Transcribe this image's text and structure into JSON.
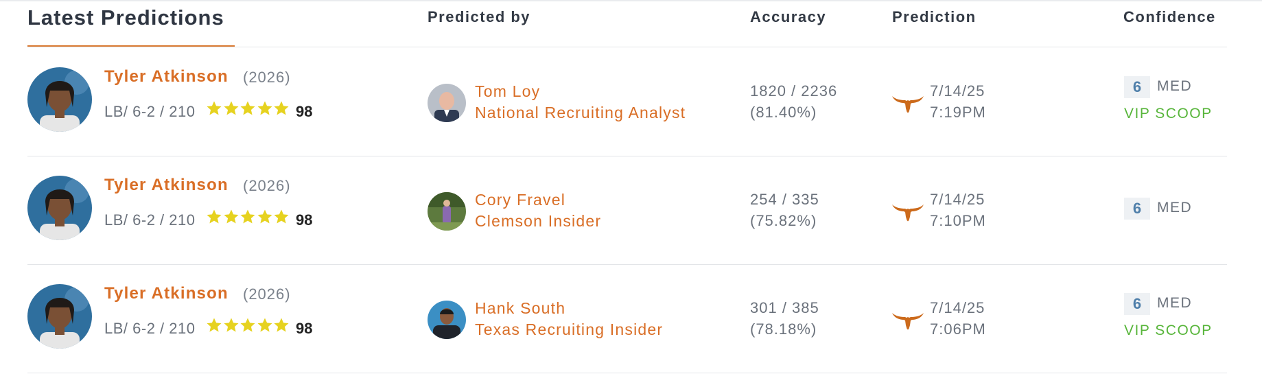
{
  "header": {
    "title": "Latest Predictions",
    "predicted_by": "Predicted by",
    "accuracy": "Accuracy",
    "prediction": "Prediction",
    "confidence": "Confidence"
  },
  "colors": {
    "accent": "#d96e26",
    "vip": "#57b53a",
    "confidence_badge": "#4f7faa",
    "stars": "#e6d21f"
  },
  "rows": [
    {
      "player": {
        "name": "Tyler Atkinson",
        "year": "(2026)",
        "meta": "LB/ 6-2 / 210",
        "stars": 5,
        "rating": "98"
      },
      "expert": {
        "name": "Tom Loy",
        "title": "National Recruiting Analyst"
      },
      "accuracy": {
        "record": "1820 / 2236",
        "percent": "(81.40%)"
      },
      "prediction": {
        "team_icon": "longhorn-icon",
        "date": "7/14/25",
        "time": "7:19PM"
      },
      "confidence": {
        "value": "6",
        "level": "MED",
        "badge": "VIP SCOOP"
      }
    },
    {
      "player": {
        "name": "Tyler Atkinson",
        "year": "(2026)",
        "meta": "LB/ 6-2 / 210",
        "stars": 5,
        "rating": "98"
      },
      "expert": {
        "name": "Cory Fravel",
        "title": "Clemson Insider"
      },
      "accuracy": {
        "record": "254 / 335",
        "percent": "(75.82%)"
      },
      "prediction": {
        "team_icon": "longhorn-icon",
        "date": "7/14/25",
        "time": "7:10PM"
      },
      "confidence": {
        "value": "6",
        "level": "MED",
        "badge": ""
      }
    },
    {
      "player": {
        "name": "Tyler Atkinson",
        "year": "(2026)",
        "meta": "LB/ 6-2 / 210",
        "stars": 5,
        "rating": "98"
      },
      "expert": {
        "name": "Hank South",
        "title": "Texas Recruiting Insider"
      },
      "accuracy": {
        "record": "301 / 385",
        "percent": "(78.18%)"
      },
      "prediction": {
        "team_icon": "longhorn-icon",
        "date": "7/14/25",
        "time": "7:06PM"
      },
      "confidence": {
        "value": "6",
        "level": "MED",
        "badge": "VIP SCOOP"
      }
    }
  ]
}
